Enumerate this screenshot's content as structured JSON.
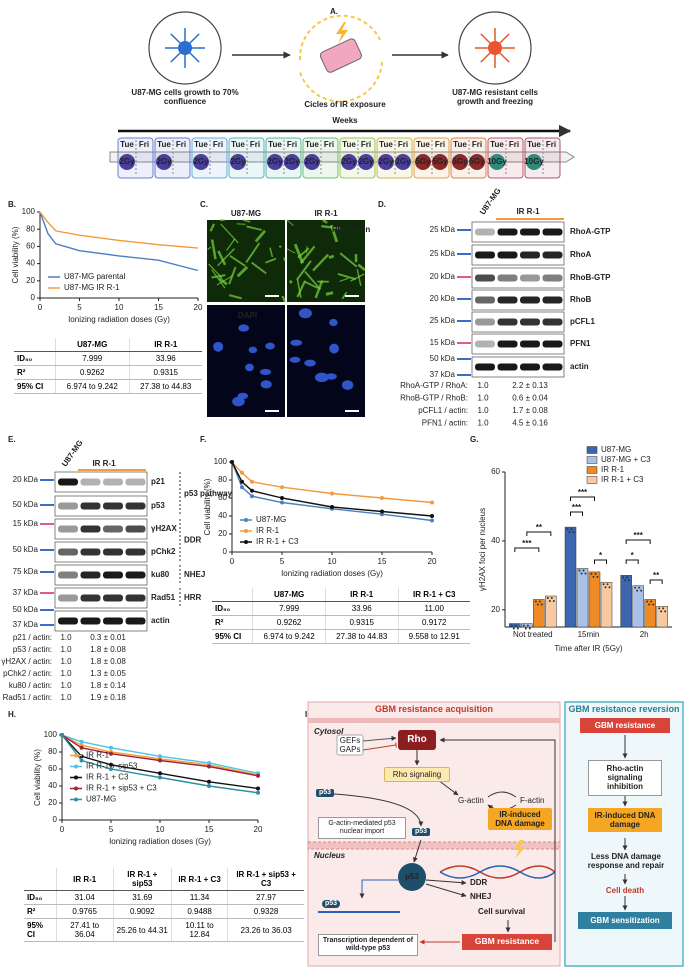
{
  "panel_labels": [
    "A.",
    "B.",
    "C.",
    "D.",
    "E.",
    "F.",
    "G.",
    "H.",
    "I."
  ],
  "panel_a": {
    "steps": [
      "U87-MG cells growth to 70% confluence",
      "Cicles of IR exposure",
      "U87-MG resistant cells growth and freezing"
    ],
    "axis_label": "Weeks",
    "weeks": [
      {
        "days": [
          "Tue",
          "Fri"
        ],
        "doses": [
          "2Gy"
        ]
      },
      {
        "days": [
          "Tue",
          "Fri"
        ],
        "doses": [
          "2Gy"
        ]
      },
      {
        "days": [
          "Tue",
          "Fri"
        ],
        "doses": [
          "2Gy"
        ]
      },
      {
        "days": [
          "Tue",
          "Fri"
        ],
        "doses": [
          "2Gy"
        ]
      },
      {
        "days": [
          "Tue",
          "Fri"
        ],
        "doses": [
          "2Gy",
          "2Gy"
        ]
      },
      {
        "days": [
          "Tue",
          "Fri"
        ],
        "doses": [
          "2Gy"
        ]
      },
      {
        "days": [
          "Tue",
          "Fri"
        ],
        "doses": [
          "2Gy",
          "2Gy"
        ]
      },
      {
        "days": [
          "Tue",
          "Fri"
        ],
        "doses": [
          "2Gy",
          "2Gy"
        ]
      },
      {
        "days": [
          "Tue",
          "Fri"
        ],
        "doses": [
          "5Gy",
          "5Gy"
        ]
      },
      {
        "days": [
          "Tue",
          "Fri"
        ],
        "doses": [
          "5Gy",
          "5Gy"
        ]
      },
      {
        "days": [
          "Tue",
          "Fri"
        ],
        "doses": [
          "10Gy"
        ]
      },
      {
        "days": [
          "Tue",
          "Fri"
        ],
        "doses": [
          "10Gy"
        ]
      }
    ]
  },
  "chart_data": [
    {
      "type": "line",
      "x_label": "Ionizing radiation doses (Gy)",
      "y_label": "Cell viability (%)",
      "x": [
        0,
        1,
        2,
        5,
        10,
        15,
        20
      ],
      "series": [
        {
          "name": "U87-MG parental",
          "color": "#4a7fc1",
          "values": [
            100,
            75,
            63,
            55,
            49,
            44,
            32
          ]
        },
        {
          "name": "U87-MG IR R-1",
          "color": "#f29a3c",
          "values": [
            100,
            88,
            78,
            73,
            67,
            62,
            58
          ]
        }
      ],
      "xlim": [
        0,
        20
      ],
      "xticks": [
        0,
        5,
        10,
        15,
        20
      ],
      "ylim": [
        0,
        100
      ],
      "yticks": [
        0,
        20,
        40,
        60,
        80,
        100
      ],
      "legend": "lower left",
      "markers": false
    },
    {
      "type": "line",
      "x_label": "Ionizing radiation doses (Gy)",
      "y_label": "Cell viability (%)",
      "x": [
        0,
        1,
        2,
        5,
        10,
        15,
        20
      ],
      "series": [
        {
          "name": "U87-MG",
          "color": "#4a7fc1",
          "values": [
            100,
            72,
            62,
            55,
            48,
            42,
            35
          ]
        },
        {
          "name": "IR R-1",
          "color": "#f29a3c",
          "values": [
            100,
            88,
            78,
            72,
            65,
            60,
            55
          ]
        },
        {
          "name": "IR R-1 + C3",
          "color": "#111111",
          "values": [
            100,
            78,
            68,
            60,
            50,
            45,
            40
          ]
        }
      ],
      "xlim": [
        0,
        20
      ],
      "xticks": [
        0,
        5,
        10,
        15,
        20
      ],
      "ylim": [
        0,
        100
      ],
      "yticks": [
        0,
        20,
        40,
        60,
        80,
        100
      ],
      "legend": "lower left",
      "markers": true
    },
    {
      "type": "bar",
      "x_label": "Time after IR (5Gy)",
      "y_label": "γH2AX foci per nucleus",
      "categories": [
        "Not treated",
        "15min",
        "2h"
      ],
      "series": [
        {
          "name": "U87-MG",
          "color": "#3b66b0",
          "values": [
            16,
            44,
            30
          ]
        },
        {
          "name": "U87-MG + C3",
          "color": "#a9c1e6",
          "values": [
            16,
            32,
            27
          ]
        },
        {
          "name": "IR R-1",
          "color": "#f08a24",
          "values": [
            23,
            31,
            23
          ]
        },
        {
          "name": "IR R-1 + C3",
          "color": "#f6c9a0",
          "values": [
            24,
            28,
            21
          ]
        }
      ],
      "ylim": [
        15,
        60
      ],
      "yticks": [
        20,
        40,
        60
      ],
      "legend": "upper right",
      "annotations": [
        "***",
        "**",
        "***",
        "***",
        "*",
        "***",
        "*",
        "**"
      ]
    },
    {
      "type": "line",
      "x_label": "Ionizing radiation doses (Gy)",
      "y_label": "Cell viability (%)",
      "x": [
        0,
        2,
        5,
        10,
        15,
        20
      ],
      "series": [
        {
          "name": "IR R-1",
          "color": "#f4a13c",
          "values": [
            100,
            88,
            80,
            72,
            65,
            53
          ]
        },
        {
          "name": "IR R-1 + sip53",
          "color": "#4fc3e8",
          "values": [
            100,
            92,
            85,
            75,
            67,
            55
          ]
        },
        {
          "name": "IR R-1 + C3",
          "color": "#111111",
          "values": [
            100,
            75,
            65,
            55,
            45,
            37
          ]
        },
        {
          "name": "IR R-1 + sip53 + C3",
          "color": "#a3213a",
          "values": [
            100,
            85,
            78,
            70,
            63,
            52
          ]
        },
        {
          "name": "U87-MG",
          "color": "#2f8fa3",
          "values": [
            100,
            70,
            60,
            50,
            40,
            32
          ]
        }
      ],
      "xlim": [
        0,
        20
      ],
      "xticks": [
        0,
        5,
        10,
        15,
        20
      ],
      "ylim": [
        0,
        100
      ],
      "yticks": [
        0,
        20,
        40,
        60,
        80,
        100
      ],
      "legend": "center left",
      "markers": true
    }
  ],
  "tables": [
    {
      "header": [
        "U87-MG",
        "IR R-1"
      ],
      "rows": [
        [
          "ID₅₀",
          "7.999",
          "33.96"
        ],
        [
          "R²",
          "0.9262",
          "0.9315"
        ],
        [
          "95% CI",
          "6.974 to 9.242",
          "27.38 to 44.83"
        ]
      ]
    },
    {
      "header": [
        "U87-MG",
        "IR R-1",
        "IR R-1 + C3"
      ],
      "rows": [
        [
          "ID₅₀",
          "7.999",
          "33.96",
          "11.00"
        ],
        [
          "R²",
          "0.9262",
          "0.9315",
          "0.9172"
        ],
        [
          "95% CI",
          "6.974 to 9.242",
          "27.38 to 44.83",
          "9.558 to 12.91"
        ]
      ]
    },
    {
      "header": [
        "IR R-1",
        "IR R-1 + sip53",
        "IR R-1 + C3",
        "IR R-1 + sip53 + C3"
      ],
      "rows": [
        [
          "ID₅₀",
          "31.04",
          "31.69",
          "11.34",
          "27.97"
        ],
        [
          "R²",
          "0.9765",
          "0.9092",
          "0.9488",
          "0.9328"
        ],
        [
          "95% CI",
          "27.41 to 36.04",
          "25.26 to 44.31",
          "10.11 to 12.84",
          "23.26 to 36.03"
        ]
      ]
    }
  ],
  "panel_c": {
    "columns": [
      "U87-MG",
      "IR R-1"
    ],
    "stains": [
      "Phalloidin",
      "DAPI"
    ]
  },
  "panel_d": {
    "groups": [
      "U87-MG",
      "IR R-1"
    ],
    "markers": [
      "25 kDa",
      "25 kDa",
      "20 kDa",
      "20 kDa",
      "25 kDa",
      "15 kDa",
      "50 kDa",
      "37 kDa"
    ],
    "proteins": [
      "RhoA-GTP",
      "RhoA",
      "RhoB-GTP",
      "RhoB",
      "pCFL1",
      "PFN1",
      "actin"
    ],
    "ratios": [
      {
        "label": "RhoA-GTP / RhoA:",
        "control": "1.0",
        "resistant": "2.2 ± 0.13"
      },
      {
        "label": "RhoB-GTP / RhoB:",
        "control": "1.0",
        "resistant": "0.6 ± 0.04"
      },
      {
        "label": "pCFL1 / actin:",
        "control": "1.0",
        "resistant": "1.7 ± 0.08"
      },
      {
        "label": "PFN1 / actin:",
        "control": "1.0",
        "resistant": "4.5 ± 0.16"
      }
    ]
  },
  "panel_e": {
    "groups": [
      "U87-MG",
      "IR R-1"
    ],
    "markers": [
      "20 kDa",
      "50 kDa",
      "15 kDa",
      "50 kDa",
      "75 kDa",
      "37 kDa",
      "50 kDa",
      "37 kDa"
    ],
    "proteins": [
      "p21",
      "p53",
      "γH2AX",
      "pChk2",
      "ku80",
      "Rad51",
      "actin"
    ],
    "pathways": [
      "p53 pathway",
      "DDR",
      "NHEJ",
      "HRR"
    ],
    "ratios": [
      {
        "label": "p21 / actin:",
        "control": "1.0",
        "resistant": "0.3 ± 0.01"
      },
      {
        "label": "p53 / actin:",
        "control": "1.0",
        "resistant": "1.8 ± 0.08"
      },
      {
        "label": "γH2AX / actin:",
        "control": "1.0",
        "resistant": "1.8 ± 0.08"
      },
      {
        "label": "pChk2 / actin:",
        "control": "1.0",
        "resistant": "1.3 ± 0.05"
      },
      {
        "label": "ku80 / actin:",
        "control": "1.0",
        "resistant": "1.8 ± 0.14"
      },
      {
        "label": "Rad51 / actin:",
        "control": "1.0",
        "resistant": "1.9 ± 0.18"
      }
    ]
  },
  "panel_i": {
    "left_title": "GBM resistance acquisition",
    "right_title": "GBM resistance reversion",
    "compartments": [
      "Cytosol",
      "Nucleus"
    ],
    "regulators": [
      "GEFs",
      "GAPs"
    ],
    "rho": "Rho",
    "rho_signaling": "Rho signaling",
    "actin": [
      "G-actin",
      "F-actin"
    ],
    "p53": [
      "p53",
      "p53",
      "p53",
      "p53"
    ],
    "import": "G-actin-mediated p53 nuclear import",
    "damage": "IR-induced DNA damage",
    "repair": [
      "DDR",
      "NHEJ"
    ],
    "survival": "Cell survival",
    "transcription": "Transcription dependent of wild-type p53",
    "resistance": "GBM resistance",
    "reversion_steps": [
      "GBM resistance",
      "Rho-actin signaling inhibition",
      "IR-induced DNA damage",
      "Less DNA damage response and repair",
      "Cell death",
      "GBM sensitization"
    ]
  }
}
